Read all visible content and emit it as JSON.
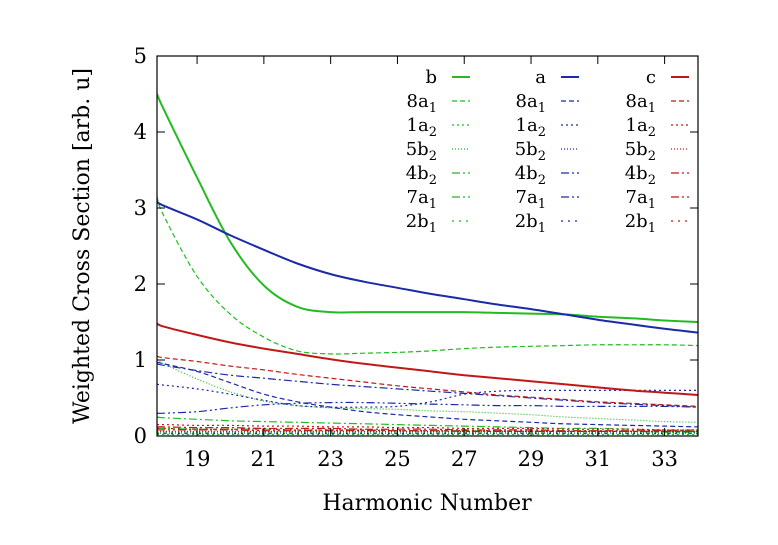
{
  "chart_data": {
    "type": "line",
    "title": "",
    "xlabel": "Harmonic Number",
    "ylabel": "Weighted Cross Section [arb. u]",
    "xlim": [
      17.8,
      34
    ],
    "ylim": [
      0,
      5
    ],
    "xticks": [
      19,
      21,
      23,
      25,
      27,
      29,
      31,
      33
    ],
    "yticks": [
      0,
      1,
      2,
      3,
      4,
      5
    ],
    "grid": false,
    "legend_position": "top-right",
    "colors": {
      "b": "#22bb22",
      "a": "#1a2aa8",
      "c": "#c01818"
    },
    "x": [
      17.8,
      18,
      19,
      20,
      21,
      22,
      23,
      24,
      25,
      26,
      27,
      28,
      29,
      30,
      31,
      32,
      33,
      34
    ],
    "groups": [
      {
        "name": "b",
        "color": "#22bb22",
        "series": [
          {
            "name": "b",
            "orbital": "",
            "dash": "solid",
            "values": [
              4.5,
              4.3,
              3.4,
              2.55,
              1.98,
              1.7,
              1.63,
              1.63,
              1.63,
              1.63,
              1.63,
              1.62,
              1.61,
              1.6,
              1.57,
              1.55,
              1.52,
              1.5
            ]
          },
          {
            "name": "8a",
            "sub": "1",
            "dash": "5,3",
            "values": [
              3.15,
              2.9,
              2.1,
              1.6,
              1.3,
              1.12,
              1.08,
              1.09,
              1.1,
              1.12,
              1.15,
              1.17,
              1.18,
              1.19,
              1.2,
              1.2,
              1.2,
              1.19
            ]
          },
          {
            "name": "1a",
            "sub": "2",
            "dash": "2,3",
            "values": [
              0.02,
              0.02,
              0.02,
              0.02,
              0.02,
              0.02,
              0.02,
              0.02,
              0.02,
              0.02,
              0.02,
              0.02,
              0.02,
              0.02,
              0.02,
              0.02,
              0.02,
              0.02
            ]
          },
          {
            "name": "5b",
            "sub": "2",
            "dash": "1,2",
            "values": [
              1.0,
              0.95,
              0.75,
              0.58,
              0.46,
              0.4,
              0.37,
              0.36,
              0.35,
              0.33,
              0.32,
              0.3,
              0.28,
              0.25,
              0.23,
              0.21,
              0.19,
              0.18
            ]
          },
          {
            "name": "4b",
            "sub": "2",
            "dash": "8,3,2,3",
            "values": [
              0.25,
              0.24,
              0.22,
              0.2,
              0.19,
              0.18,
              0.17,
              0.16,
              0.15,
              0.14,
              0.13,
              0.12,
              0.11,
              0.1,
              0.1,
              0.09,
              0.08,
              0.08
            ]
          },
          {
            "name": "7a",
            "sub": "1",
            "dash": "8,3,2,3,2,3",
            "values": [
              0.1,
              0.1,
              0.09,
              0.09,
              0.09,
              0.08,
              0.08,
              0.08,
              0.07,
              0.07,
              0.07,
              0.06,
              0.06,
              0.06,
              0.06,
              0.06,
              0.05,
              0.05
            ]
          },
          {
            "name": "2b",
            "sub": "1",
            "dash": "2,5",
            "values": [
              0.05,
              0.05,
              0.05,
              0.05,
              0.05,
              0.05,
              0.05,
              0.05,
              0.05,
              0.05,
              0.05,
              0.05,
              0.05,
              0.05,
              0.05,
              0.05,
              0.05,
              0.05
            ]
          }
        ]
      },
      {
        "name": "a",
        "color": "#1a2aa8",
        "series": [
          {
            "name": "a",
            "orbital": "",
            "dash": "solid",
            "values": [
              3.08,
              3.03,
              2.85,
              2.64,
              2.45,
              2.27,
              2.13,
              2.03,
              1.95,
              1.87,
              1.8,
              1.73,
              1.67,
              1.6,
              1.53,
              1.47,
              1.41,
              1.36
            ]
          },
          {
            "name": "8a",
            "sub": "1",
            "dash": "5,3",
            "values": [
              0.97,
              0.95,
              0.85,
              0.7,
              0.55,
              0.45,
              0.38,
              0.32,
              0.28,
              0.25,
              0.22,
              0.2,
              0.18,
              0.16,
              0.15,
              0.14,
              0.13,
              0.12
            ]
          },
          {
            "name": "1a",
            "sub": "2",
            "dash": "2,3",
            "values": [
              0.68,
              0.67,
              0.62,
              0.55,
              0.47,
              0.4,
              0.38,
              0.38,
              0.39,
              0.45,
              0.55,
              0.59,
              0.6,
              0.6,
              0.6,
              0.6,
              0.6,
              0.6
            ]
          },
          {
            "name": "5b",
            "sub": "2",
            "dash": "1,2",
            "values": [
              0.04,
              0.04,
              0.04,
              0.04,
              0.04,
              0.04,
              0.04,
              0.04,
              0.04,
              0.04,
              0.04,
              0.04,
              0.04,
              0.04,
              0.04,
              0.04,
              0.04,
              0.04
            ]
          },
          {
            "name": "4b",
            "sub": "2",
            "dash": "8,3,2,3",
            "values": [
              0.95,
              0.93,
              0.86,
              0.8,
              0.76,
              0.72,
              0.68,
              0.65,
              0.62,
              0.59,
              0.56,
              0.53,
              0.5,
              0.47,
              0.44,
              0.42,
              0.4,
              0.38
            ]
          },
          {
            "name": "7a",
            "sub": "1",
            "dash": "8,3,2,3,2,3",
            "values": [
              0.3,
              0.3,
              0.32,
              0.37,
              0.41,
              0.43,
              0.44,
              0.44,
              0.43,
              0.42,
              0.41,
              0.4,
              0.4,
              0.39,
              0.39,
              0.39,
              0.39,
              0.38
            ]
          },
          {
            "name": "2b",
            "sub": "1",
            "dash": "2,5",
            "values": [
              0.03,
              0.03,
              0.03,
              0.03,
              0.03,
              0.03,
              0.03,
              0.03,
              0.03,
              0.03,
              0.03,
              0.03,
              0.03,
              0.03,
              0.03,
              0.03,
              0.03,
              0.03
            ]
          }
        ]
      },
      {
        "name": "c",
        "color": "#c01818",
        "series": [
          {
            "name": "c",
            "orbital": "",
            "dash": "solid",
            "values": [
              1.48,
              1.44,
              1.33,
              1.23,
              1.15,
              1.08,
              1.01,
              0.95,
              0.9,
              0.85,
              0.8,
              0.76,
              0.72,
              0.68,
              0.64,
              0.6,
              0.57,
              0.54
            ]
          },
          {
            "name": "8a",
            "sub": "1",
            "dash": "5,3",
            "values": [
              1.05,
              1.03,
              0.98,
              0.92,
              0.87,
              0.81,
              0.76,
              0.71,
              0.66,
              0.62,
              0.58,
              0.54,
              0.51,
              0.48,
              0.45,
              0.43,
              0.41,
              0.39
            ]
          },
          {
            "name": "1a",
            "sub": "2",
            "dash": "2,3",
            "values": [
              0.15,
              0.15,
              0.14,
              0.14,
              0.13,
              0.13,
              0.12,
              0.12,
              0.11,
              0.11,
              0.1,
              0.1,
              0.1,
              0.09,
              0.09,
              0.09,
              0.08,
              0.08
            ]
          },
          {
            "name": "5b",
            "sub": "2",
            "dash": "1,2",
            "values": [
              0.06,
              0.06,
              0.06,
              0.06,
              0.06,
              0.06,
              0.06,
              0.06,
              0.06,
              0.06,
              0.06,
              0.06,
              0.06,
              0.06,
              0.06,
              0.06,
              0.06,
              0.06
            ]
          },
          {
            "name": "4b",
            "sub": "2",
            "dash": "8,3,2,3",
            "values": [
              0.12,
              0.12,
              0.11,
              0.11,
              0.1,
              0.1,
              0.1,
              0.09,
              0.09,
              0.09,
              0.08,
              0.08,
              0.08,
              0.07,
              0.07,
              0.07,
              0.07,
              0.06
            ]
          },
          {
            "name": "7a",
            "sub": "1",
            "dash": "8,3,2,3,2,3",
            "values": [
              0.08,
              0.08,
              0.08,
              0.08,
              0.07,
              0.07,
              0.07,
              0.07,
              0.07,
              0.07,
              0.06,
              0.06,
              0.06,
              0.06,
              0.06,
              0.06,
              0.06,
              0.06
            ]
          },
          {
            "name": "2b",
            "sub": "1",
            "dash": "2,5",
            "values": [
              0.1,
              0.1,
              0.09,
              0.09,
              0.09,
              0.08,
              0.08,
              0.08,
              0.07,
              0.07,
              0.07,
              0.07,
              0.06,
              0.06,
              0.06,
              0.06,
              0.06,
              0.06
            ]
          }
        ]
      }
    ]
  }
}
